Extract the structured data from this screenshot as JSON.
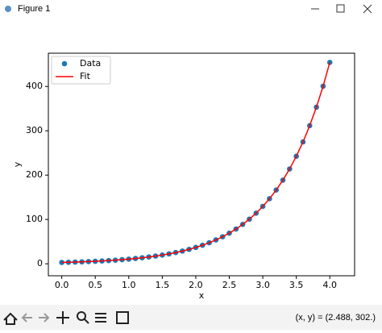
{
  "window": {
    "title": "Figure 1"
  },
  "chart_data": {
    "type": "scatter",
    "xlabel": "x",
    "ylabel": "y",
    "x": [
      0.0,
      0.1,
      0.2,
      0.3,
      0.4,
      0.5,
      0.6,
      0.7,
      0.8,
      0.9,
      1.0,
      1.1,
      1.2,
      1.3,
      1.4,
      1.5,
      1.6,
      1.7,
      1.8,
      1.9,
      2.0,
      2.1,
      2.2,
      2.3,
      2.4,
      2.5,
      2.6,
      2.7,
      2.8,
      2.9,
      3.0,
      3.1,
      3.2,
      3.3,
      3.4,
      3.5,
      3.6,
      3.7,
      3.8,
      3.9,
      4.0
    ],
    "series": [
      {
        "name": "Data",
        "kind": "scatter",
        "color": "#1f77b4",
        "values": [
          3.0,
          3.4,
          3.86,
          4.37,
          4.96,
          5.62,
          6.37,
          7.22,
          8.19,
          9.28,
          10.52,
          11.93,
          13.52,
          15.33,
          17.38,
          19.71,
          22.34,
          25.33,
          28.72,
          32.56,
          36.91,
          41.85,
          47.44,
          53.79,
          60.98,
          69.13,
          78.38,
          88.86,
          100.74,
          114.21,
          129.48,
          146.79,
          166.42,
          188.67,
          213.9,
          242.5,
          274.93,
          311.69,
          353.37,
          400.62,
          454.2
        ]
      },
      {
        "name": "Fit",
        "kind": "line",
        "color": "#ff0000",
        "values": [
          3.0,
          3.4,
          3.86,
          4.37,
          4.96,
          5.62,
          6.37,
          7.22,
          8.19,
          9.28,
          10.52,
          11.93,
          13.52,
          15.33,
          17.38,
          19.71,
          22.34,
          25.33,
          28.72,
          32.56,
          36.91,
          41.85,
          47.44,
          53.79,
          60.98,
          69.13,
          78.38,
          88.86,
          100.74,
          114.21,
          129.48,
          146.79,
          166.42,
          188.67,
          213.9,
          242.5,
          274.93,
          311.69,
          353.37,
          400.62,
          454.2
        ]
      }
    ],
    "xlim": [
      -0.2,
      4.37
    ],
    "ylim": [
      -27,
      475
    ],
    "xticks": [
      {
        "value": 0,
        "label": "0.0"
      },
      {
        "value": 0.5,
        "label": "0.5"
      },
      {
        "value": 1,
        "label": "1.0"
      },
      {
        "value": 1.5,
        "label": "1.5"
      },
      {
        "value": 2,
        "label": "2.0"
      },
      {
        "value": 2.5,
        "label": "2.5"
      },
      {
        "value": 3,
        "label": "3.0"
      },
      {
        "value": 3.5,
        "label": "3.5"
      },
      {
        "value": 4,
        "label": "4.0"
      }
    ],
    "yticks": [
      0,
      100,
      200,
      300,
      400
    ],
    "grid": false,
    "legend": "upper left"
  },
  "status": "(x, y) = (2.488, 302.)"
}
